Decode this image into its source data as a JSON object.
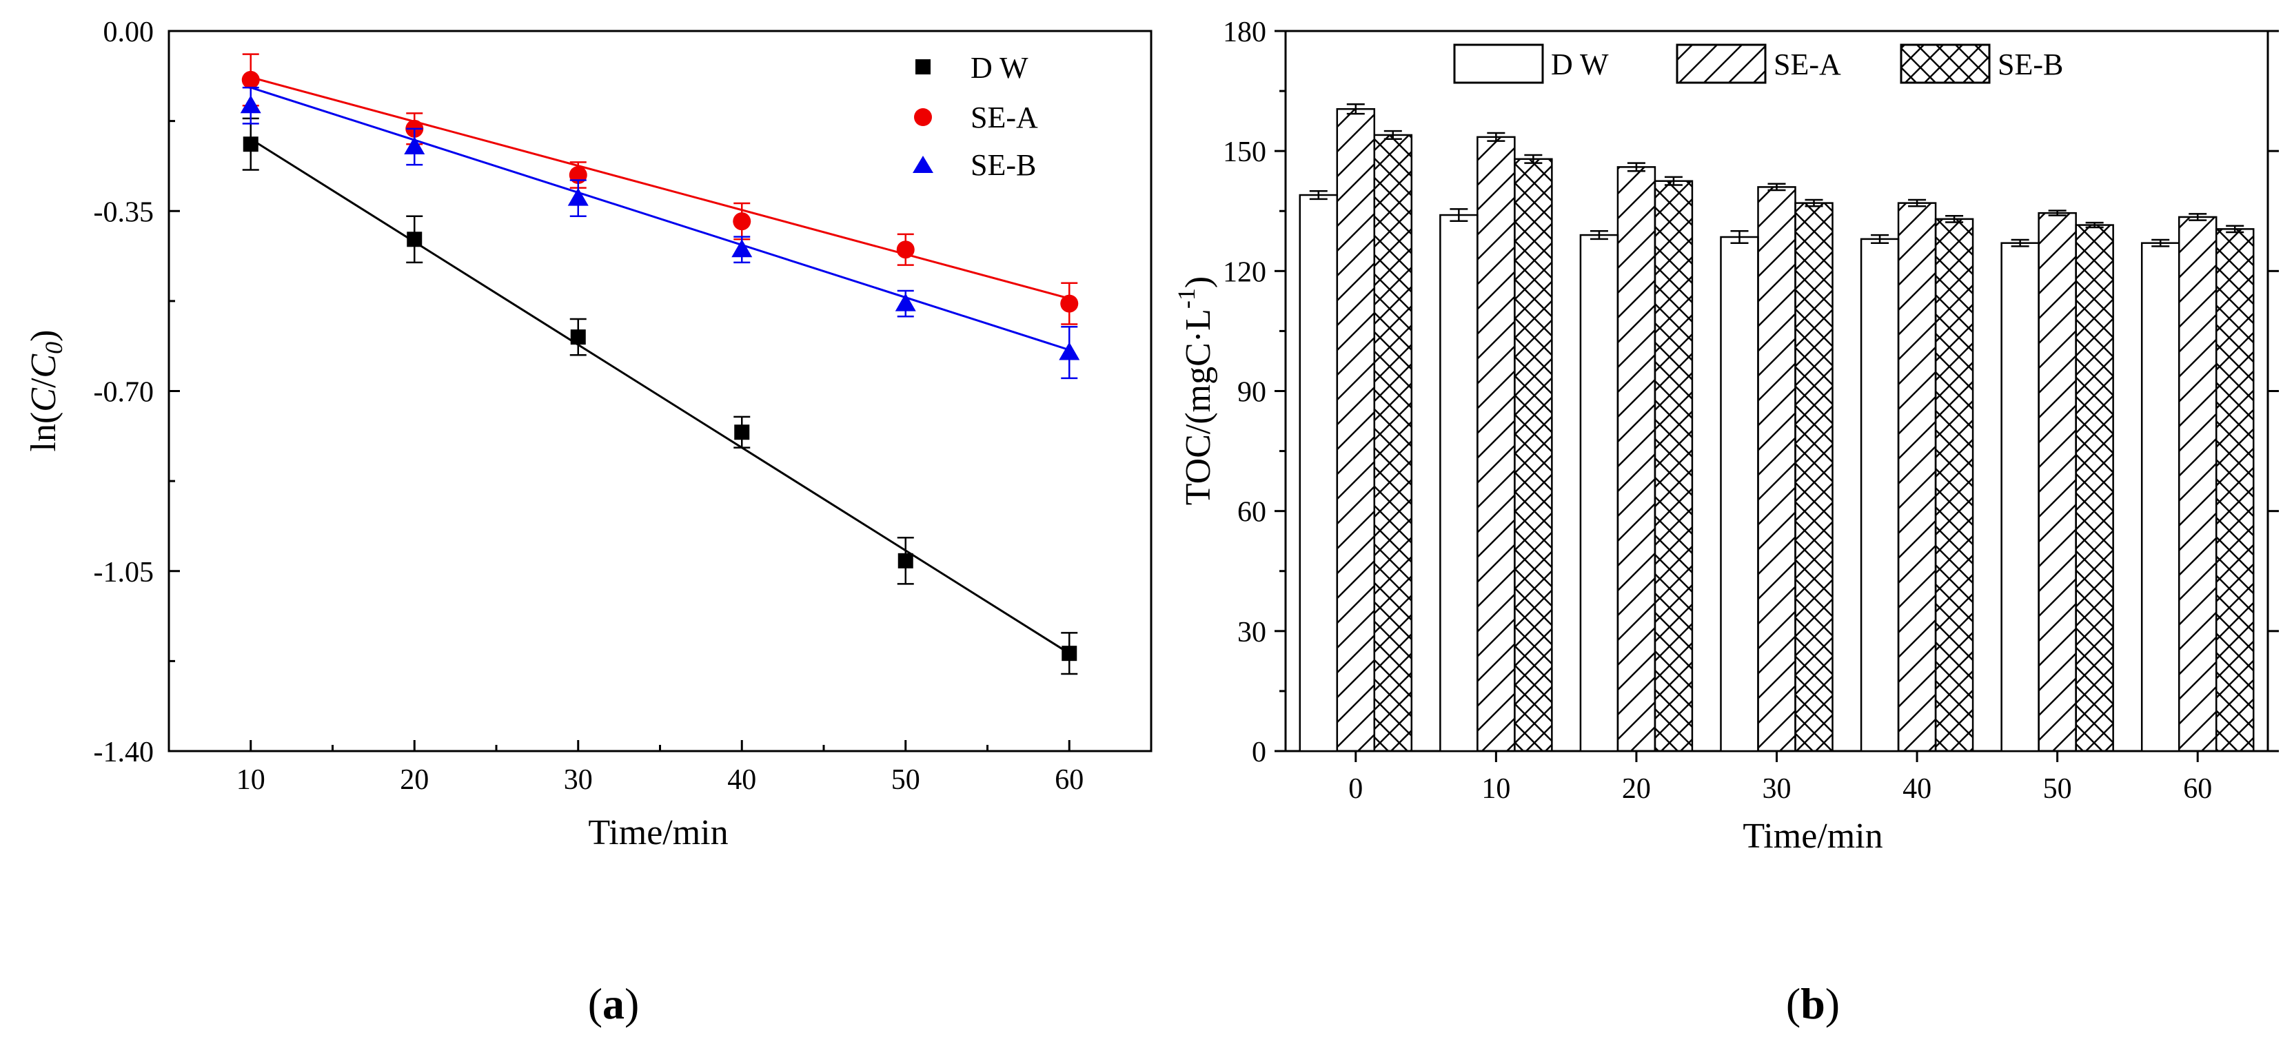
{
  "chart_data": [
    {
      "id": "a",
      "type": "scatter",
      "panel_label": "a",
      "xlabel": "Time/min",
      "ylabel_prefix": "ln(",
      "ylabel_c": "C",
      "ylabel_slash": "/",
      "ylabel_c0": "C",
      "ylabel_sub": "0",
      "ylabel_suffix": ")",
      "xlim": [
        5,
        65
      ],
      "ylim": [
        -1.4,
        0.0
      ],
      "x_ticks": [
        10,
        20,
        30,
        40,
        50,
        60
      ],
      "x_tick_labels": [
        "10",
        "20",
        "30",
        "40",
        "50",
        "60"
      ],
      "y_ticks": [
        0.0,
        -0.35,
        -0.7,
        -1.05,
        -1.4
      ],
      "y_tick_labels": [
        "0.00",
        "-0.35",
        "-0.70",
        "-1.05",
        "-1.40"
      ],
      "legend_position": "top-right",
      "series": [
        {
          "name": "D W",
          "marker": "square",
          "color": "#000000",
          "x": [
            10,
            20,
            30,
            40,
            50,
            60
          ],
          "y": [
            -0.22,
            -0.405,
            -0.595,
            -0.78,
            -1.03,
            -1.21
          ],
          "err": [
            0.05,
            0.045,
            0.035,
            0.03,
            0.045,
            0.04
          ],
          "fit": [
            -0.21,
            -1.21
          ]
        },
        {
          "name": "SE-A",
          "marker": "circle",
          "color": "#ee0000",
          "x": [
            10,
            20,
            30,
            40,
            50,
            60
          ],
          "y": [
            -0.095,
            -0.19,
            -0.28,
            -0.37,
            -0.425,
            -0.53
          ],
          "err": [
            0.05,
            0.03,
            0.025,
            0.035,
            0.03,
            0.04
          ],
          "fit": [
            -0.09,
            -0.52
          ]
        },
        {
          "name": "SE-B",
          "marker": "triangle",
          "color": "#0000ee",
          "x": [
            10,
            20,
            30,
            40,
            50,
            60
          ],
          "y": [
            -0.145,
            -0.225,
            -0.325,
            -0.425,
            -0.53,
            -0.625
          ],
          "err": [
            0.035,
            0.035,
            0.035,
            0.025,
            0.025,
            0.05
          ],
          "fit": [
            -0.11,
            -0.62
          ]
        }
      ]
    },
    {
      "id": "b",
      "type": "bar",
      "panel_label": "b",
      "xlabel": "Time/min",
      "ylabel_main": "TOC/(mgC·L",
      "ylabel_sup": "-1",
      "ylabel_close": ")",
      "categories": [
        "0",
        "10",
        "20",
        "30",
        "40",
        "50",
        "60"
      ],
      "ylim": [
        0,
        180
      ],
      "y_ticks": [
        0,
        30,
        60,
        90,
        120,
        150,
        180
      ],
      "y_tick_labels": [
        "0",
        "30",
        "60",
        "90",
        "120",
        "150",
        "180"
      ],
      "legend_position": "top",
      "series": [
        {
          "name": "D W",
          "pattern": "none",
          "values": [
            139,
            134,
            129,
            128.5,
            128,
            127,
            127
          ],
          "err": [
            1,
            1.5,
            1,
            1.5,
            1,
            0.8,
            0.8
          ]
        },
        {
          "name": "SE-A",
          "pattern": "hatch",
          "values": [
            160.5,
            153.5,
            146,
            141,
            137,
            134.5,
            133.5
          ],
          "err": [
            1.2,
            1,
            1,
            0.8,
            0.8,
            0.6,
            0.8
          ]
        },
        {
          "name": "SE-B",
          "pattern": "crosshatch",
          "values": [
            154,
            148,
            142.5,
            137,
            133,
            131.5,
            130.5
          ],
          "err": [
            1,
            1,
            1,
            0.8,
            0.8,
            0.6,
            0.8
          ]
        }
      ]
    }
  ]
}
